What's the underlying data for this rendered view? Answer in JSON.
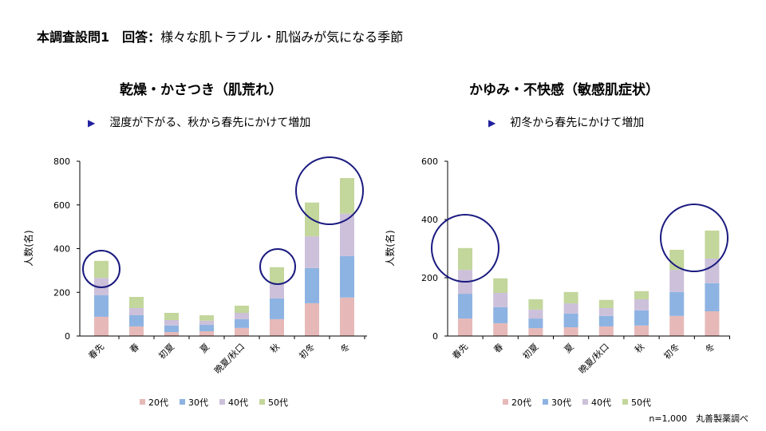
{
  "header": {
    "title_bold": "本調査設問1　回答：",
    "title_rest": "様々な肌トラブル・肌悩みが気になる季節"
  },
  "footnote": "n=1,000　丸善製薬調べ",
  "colors": {
    "20代": "#e6b9b8",
    "30代": "#8db3e2",
    "40代": "#ccc0da",
    "50代": "#c3d69b",
    "circle": "#1a1a80"
  },
  "chart_data": [
    {
      "type": "bar",
      "stacked": true,
      "title": "乾燥・かさつき（肌荒れ）",
      "subtitle": "湿度が下がる、秋から春先にかけて増加",
      "ylabel": "人数(名)",
      "ylim": [
        0,
        800
      ],
      "yticks": [
        0,
        200,
        400,
        600,
        800
      ],
      "categories": [
        "春先",
        "春",
        "初夏",
        "夏",
        "晩夏/秋口",
        "秋",
        "初冬",
        "冬"
      ],
      "series": [
        {
          "name": "20代",
          "values": [
            88,
            44,
            18,
            22,
            37,
            77,
            150,
            176
          ]
        },
        {
          "name": "30代",
          "values": [
            99,
            51,
            30,
            29,
            40,
            95,
            161,
            190
          ]
        },
        {
          "name": "40代",
          "values": [
            79,
            33,
            25,
            19,
            29,
            67,
            145,
            194
          ]
        },
        {
          "name": "50代",
          "values": [
            78,
            51,
            33,
            25,
            33,
            76,
            155,
            163
          ]
        }
      ],
      "highlighted": [
        "春先",
        "秋",
        "初冬",
        "冬"
      ],
      "legend": "bottom"
    },
    {
      "type": "bar",
      "stacked": true,
      "title": "かゆみ・不快感（敏感肌症状）",
      "subtitle": "初冬から春先にかけて増加",
      "ylabel": "人数(名)",
      "ylim": [
        0,
        600
      ],
      "yticks": [
        0,
        200,
        400,
        600
      ],
      "categories": [
        "春先",
        "春",
        "初夏",
        "夏",
        "晩夏/秋口",
        "秋",
        "初冬",
        "冬"
      ],
      "series": [
        {
          "name": "20代",
          "values": [
            60,
            44,
            27,
            30,
            33,
            36,
            69,
            85
          ]
        },
        {
          "name": "30代",
          "values": [
            85,
            55,
            33,
            47,
            36,
            52,
            82,
            96
          ]
        },
        {
          "name": "40代",
          "values": [
            82,
            49,
            31,
            35,
            27,
            38,
            76,
            85
          ]
        },
        {
          "name": "50代",
          "values": [
            75,
            50,
            35,
            39,
            28,
            28,
            69,
            96
          ]
        }
      ],
      "highlighted": [
        "春先",
        "初冬",
        "冬"
      ],
      "legend": "bottom"
    }
  ]
}
